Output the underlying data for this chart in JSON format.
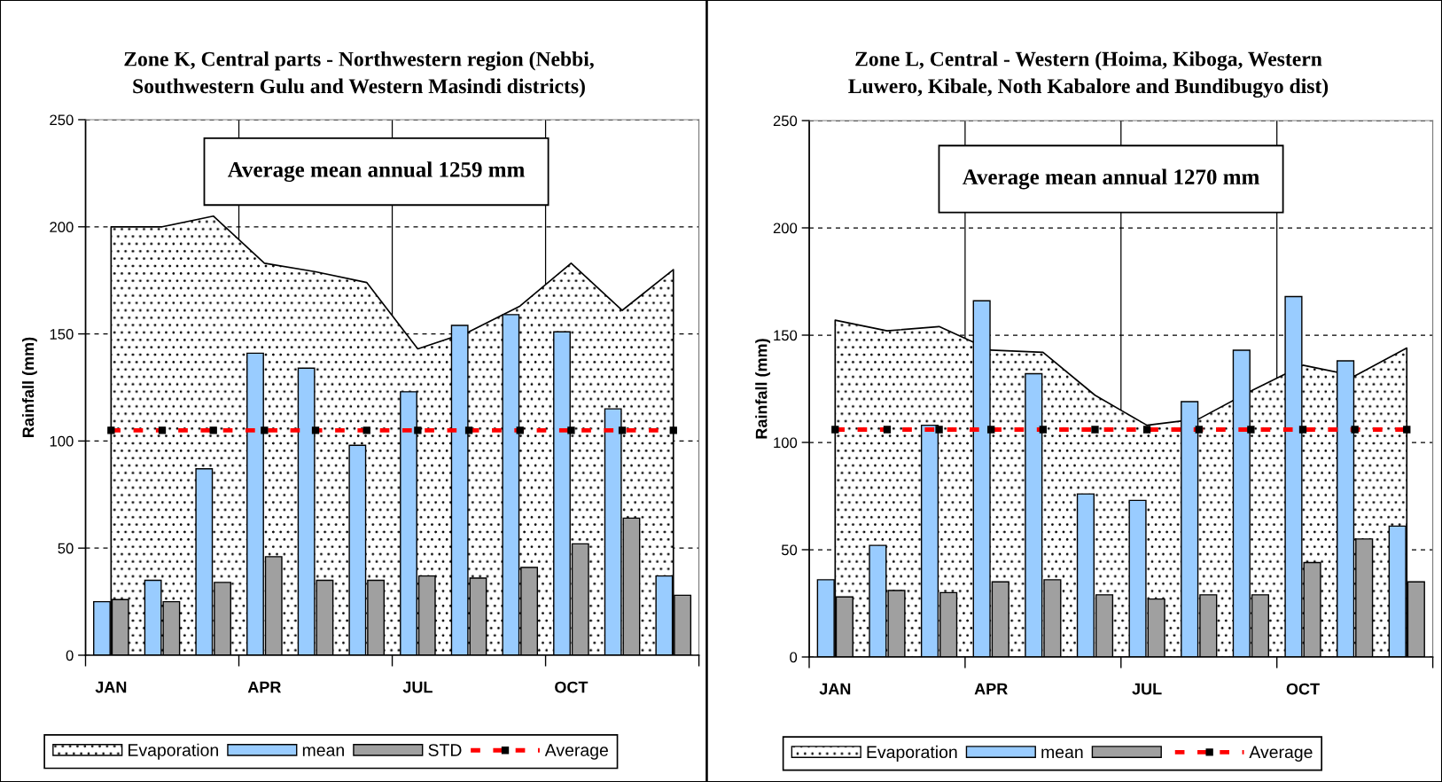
{
  "chart_data": [
    {
      "type": "bar",
      "title": "Zone K, Central parts - Northwestern region (Nebbi, Southwestern Gulu and Western Masindi districts)",
      "ylabel": "Rainfall (mm)",
      "categories": [
        "JAN",
        null,
        null,
        "APR",
        null,
        null,
        "JUL",
        null,
        null,
        "OCT",
        null,
        null
      ],
      "series": [
        {
          "name": "Evaporation",
          "type": "area",
          "color": "#000000",
          "values": [
            200,
            200,
            205,
            183,
            179,
            174,
            143,
            151,
            163,
            183,
            161,
            180
          ]
        },
        {
          "name": "mean",
          "color": "#99ccff",
          "values": [
            25,
            35,
            87,
            141,
            134,
            98,
            123,
            154,
            159,
            151,
            115,
            37
          ]
        },
        {
          "name": "STD",
          "color": "#a0a0a0",
          "values": [
            26,
            25,
            34,
            46,
            35,
            35,
            37,
            36,
            41,
            52,
            64,
            28
          ]
        },
        {
          "name": "Average",
          "type": "line",
          "color": "#ff0000",
          "line_style": "dashed",
          "marker": "square",
          "values": [
            105,
            105,
            105,
            105,
            105,
            105,
            105,
            105,
            105,
            105,
            105,
            105
          ]
        }
      ],
      "ylim": [
        0,
        250
      ],
      "yticks": [
        0,
        50,
        100,
        150,
        200,
        250
      ],
      "grid": true,
      "legend": "bottom",
      "annotations": [
        "Average mean annual 1259 mm"
      ]
    },
    {
      "type": "bar",
      "title": "Zone L, Central - Western (Hoima, Kiboga, Western Luwero, Kibale, Noth Kabalore and Bundibugyo dist)",
      "ylabel": "Rainfall (mm)",
      "categories": [
        "JAN",
        null,
        null,
        "APR",
        null,
        null,
        "JUL",
        null,
        null,
        "OCT",
        null,
        null
      ],
      "series": [
        {
          "name": "Evaporation",
          "type": "area",
          "color": "#000000",
          "values": [
            157,
            152,
            154,
            143,
            142,
            122,
            108,
            111,
            124,
            136,
            131,
            144
          ]
        },
        {
          "name": "mean",
          "color": "#99ccff",
          "values": [
            36,
            52,
            108,
            166,
            132,
            76,
            73,
            119,
            143,
            168,
            138,
            61
          ]
        },
        {
          "color": "#a0a0a0",
          "values": [
            28,
            31,
            30,
            35,
            36,
            29,
            27,
            29,
            29,
            44,
            55,
            35
          ]
        },
        {
          "name": "Average",
          "type": "line",
          "color": "#ff0000",
          "line_style": "dashed",
          "marker": "square",
          "values": [
            106,
            106,
            106,
            106,
            106,
            106,
            106,
            106,
            106,
            106,
            106,
            106
          ]
        }
      ],
      "ylim": [
        0,
        250
      ],
      "yticks": [
        0,
        50,
        100,
        150,
        200,
        250
      ],
      "grid": true,
      "legend": "bottom",
      "annotations": [
        "Average mean annual 1270 mm"
      ]
    }
  ]
}
